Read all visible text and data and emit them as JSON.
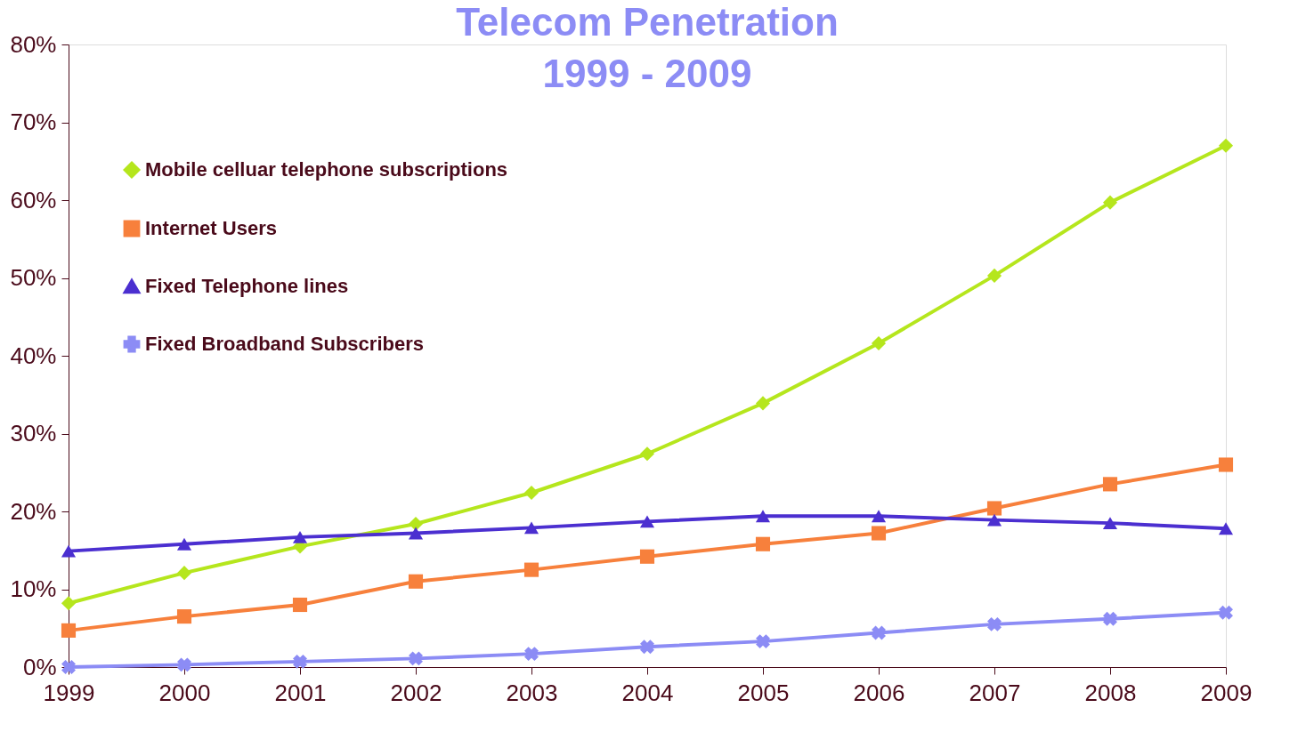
{
  "chart_data": {
    "type": "line",
    "title": [
      "Telecom Penetration",
      "1999 - 2009"
    ],
    "categories": [
      "1999",
      "2000",
      "2001",
      "2002",
      "2003",
      "2004",
      "2005",
      "2006",
      "2007",
      "2008",
      "2009"
    ],
    "series": [
      {
        "name": "Mobile celluar telephone subscriptions",
        "color": "#b5e61d",
        "marker": "diamond",
        "values": [
          8.2,
          12.1,
          15.5,
          18.4,
          22.4,
          27.4,
          33.9,
          41.6,
          50.3,
          59.7,
          67.0
        ]
      },
      {
        "name": "Internet Users",
        "color": "#f7803c",
        "marker": "square",
        "values": [
          4.7,
          6.5,
          8.0,
          11.0,
          12.5,
          14.2,
          15.8,
          17.2,
          20.4,
          23.5,
          26.0
        ]
      },
      {
        "name": "Fixed Telephone lines",
        "color": "#4b2fd0",
        "marker": "triangle",
        "values": [
          14.9,
          15.8,
          16.7,
          17.2,
          17.9,
          18.7,
          19.4,
          19.4,
          18.9,
          18.5,
          17.8
        ]
      },
      {
        "name": "Fixed Broadband Subscribers",
        "color": "#8c8cf5",
        "marker": "cross",
        "values": [
          0.0,
          0.3,
          0.7,
          1.1,
          1.7,
          2.6,
          3.3,
          4.4,
          5.5,
          6.2,
          7.0
        ]
      }
    ],
    "ylim": [
      0,
      80
    ],
    "yticks": [
      {
        "value": 0,
        "label": "0%"
      },
      {
        "value": 10,
        "label": "10%"
      },
      {
        "value": 20,
        "label": "20%"
      },
      {
        "value": 30,
        "label": "30%"
      },
      {
        "value": 40,
        "label": "40%"
      },
      {
        "value": 50,
        "label": "50%"
      },
      {
        "value": 60,
        "label": "60%"
      },
      {
        "value": 70,
        "label": "70%"
      },
      {
        "value": 80,
        "label": "80%"
      }
    ],
    "grid": false,
    "legend": "top left",
    "line_style": "solid"
  }
}
